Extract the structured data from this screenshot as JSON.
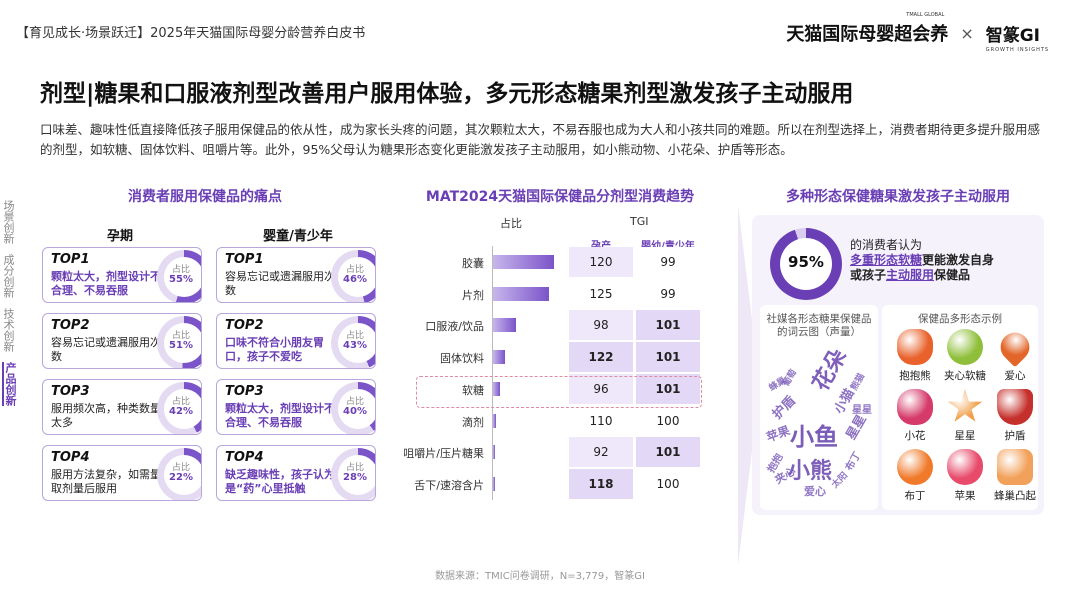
{
  "header": {
    "report_title": "【育见成长·场景跃迁】2025年天猫国际母婴分龄营养白皮书",
    "brand_tmall": "天猫国际母婴超会养",
    "brand_tmall_tag": "TMALL GLOBAL",
    "separator": "×",
    "brand_gi": "智篆GI",
    "brand_gi_tag": "GROWTH INSIGHTS"
  },
  "title": "剂型|糖果和口服液剂型改善用户服用体验，多元形态糖果剂型激发孩子主动服用",
  "intro": "口味差、趣味性低直接降低孩子服用保健品的依从性，成为家长头疼的问题，其次颗粒太大，不易吞服也成为大人和小孩共同的难题。所以在剂型选择上，消费者期待更多提升服用感的剂型，如软糖、固体饮料、咀嚼片等。此外，95%父母认为糖果形态变化更能激发孩子主动服用，如小熊动物、小花朵、护盾等形态。",
  "side_nav": [
    "场景创新",
    "成分创新",
    "技术创新",
    "产品创新"
  ],
  "left_panel": {
    "title": "消费者服用保健品的痛点",
    "col_pregnancy": "孕期",
    "col_kids": "婴童/青少年",
    "ratio_label": "占比",
    "pregnancy": [
      {
        "rank": "TOP1",
        "text": "颗粒太大，剂型设计不合理、不易吞服",
        "pct": "55%",
        "value": 55,
        "highlight": true
      },
      {
        "rank": "TOP2",
        "text": "容易忘记或遗漏服用次数",
        "pct": "51%",
        "value": 51,
        "highlight": false
      },
      {
        "rank": "TOP3",
        "text": "服用频次高，种类数量太多",
        "pct": "42%",
        "value": 42,
        "highlight": false
      },
      {
        "rank": "TOP4",
        "text": "服用方法复杂，如需量取剂量后服用",
        "pct": "22%",
        "value": 22,
        "highlight": false
      }
    ],
    "kids": [
      {
        "rank": "TOP1",
        "text": "容易忘记或遗漏服用次数",
        "pct": "46%",
        "value": 46,
        "highlight": false
      },
      {
        "rank": "TOP2",
        "text": "口味不符合小朋友胃口，孩子不爱吃",
        "pct": "43%",
        "value": 43,
        "highlight": true
      },
      {
        "rank": "TOP3",
        "text": "颗粒太大，剂型设计不合理、不易吞服",
        "pct": "40%",
        "value": 40,
        "highlight": true
      },
      {
        "rank": "TOP4",
        "text": "缺乏趣味性，孩子认为是“药”心里抵触",
        "pct": "28%",
        "value": 28,
        "highlight": true
      }
    ]
  },
  "middle_panel": {
    "title": "MAT2024天猫国际保健品分剂型消费趋势",
    "col_share": "占比",
    "col_tgi": "TGI",
    "sub_pregnancy": "孕产",
    "sub_kids": "婴幼/青少年",
    "rows": [
      {
        "label": "胶囊",
        "share": 0.85,
        "tgi_preg": "120",
        "tgi_kids": "99",
        "bold_preg": false,
        "bold_kids": false
      },
      {
        "label": "片剂",
        "share": 0.78,
        "tgi_preg": "125",
        "tgi_kids": "99",
        "bold_preg": false,
        "bold_kids": false
      },
      {
        "label": "口服液/饮品",
        "share": 0.32,
        "tgi_preg": "98",
        "tgi_kids": "101",
        "bold_preg": false,
        "bold_kids": true
      },
      {
        "label": "固体饮料",
        "share": 0.16,
        "tgi_preg": "122",
        "tgi_kids": "101",
        "bold_preg": true,
        "bold_kids": true
      },
      {
        "label": "软糖",
        "share": 0.1,
        "tgi_preg": "96",
        "tgi_kids": "101",
        "bold_preg": false,
        "bold_kids": true
      },
      {
        "label": "滴剂",
        "share": 0.04,
        "tgi_preg": "110",
        "tgi_kids": "100",
        "bold_preg": false,
        "bold_kids": false
      },
      {
        "label": "咀嚼片/压片糖果",
        "share": 0.03,
        "tgi_preg": "92",
        "tgi_kids": "101",
        "bold_preg": false,
        "bold_kids": true
      },
      {
        "label": "舌下/速溶含片",
        "share": 0.02,
        "tgi_preg": "118",
        "tgi_kids": "100",
        "bold_preg": true,
        "bold_kids": false
      }
    ]
  },
  "right_panel": {
    "title": "多种形态保健糖果激发孩子主动服用",
    "pct": "95%",
    "pct_value": 95,
    "stat_line1": "的消费者认为",
    "stat_line2a": "多重形态软糖",
    "stat_line2b": "更能激发自身",
    "stat_line3a": "或孩子",
    "stat_line3b": "主动服用",
    "stat_line3c": "保健品",
    "cloud_title": "社媒各形态糖果保健品的词云图（声量）",
    "cloud_words": [
      "花朵",
      "小鱼",
      "小熊",
      "小猫",
      "星星",
      "苹果",
      "护盾",
      "爱心",
      "夹心",
      "布丁",
      "星星",
      "蜂巢",
      "抱抱",
      "太阳",
      "葡萄",
      "熊猫"
    ],
    "shapes_title": "保健品多形态示例",
    "candies": [
      {
        "label": "抱抱熊",
        "color": "#e9622b",
        "shape": "bear"
      },
      {
        "label": "夹心软糖",
        "color": "#8fbf3a",
        "shape": "round"
      },
      {
        "label": "爱心",
        "color": "#e2662a",
        "shape": "heart"
      },
      {
        "label": "小花",
        "color": "#d53a6a",
        "shape": "flower"
      },
      {
        "label": "星星",
        "color": "#f0a04a",
        "shape": "star"
      },
      {
        "label": "护盾",
        "color": "#c6302c",
        "shape": "shield"
      },
      {
        "label": "布丁",
        "color": "#f07a2a",
        "shape": "round"
      },
      {
        "label": "苹果",
        "color": "#e74a6a",
        "shape": "apple"
      },
      {
        "label": "蜂巢凸起",
        "color": "#f2a15a",
        "shape": "honeycomb"
      }
    ]
  },
  "footer": "数据来源：TMIC问卷调研，N=3,779，智篆GI"
}
